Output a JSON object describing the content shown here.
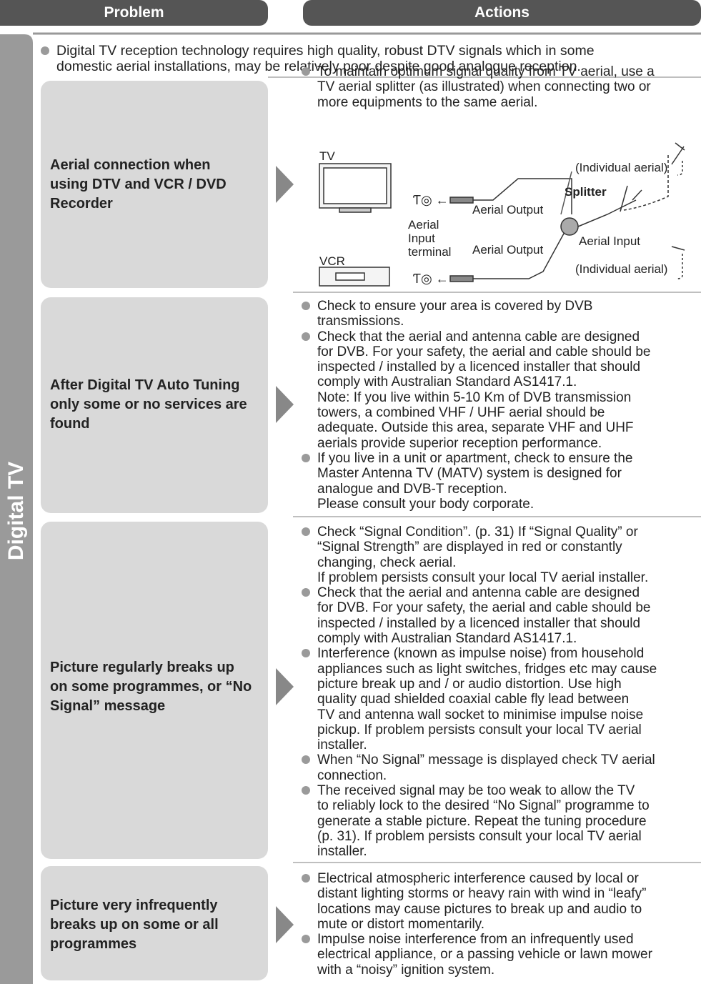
{
  "header": {
    "problem": "Problem",
    "actions": "Actions"
  },
  "section": "Digital TV",
  "intro": [
    "Digital TV reception technology requires high quality, robust DTV signals which in some",
    "domestic aerial installations, may be relatively poor despite good analogue reception."
  ],
  "rows": [
    {
      "problem": [
        "Aerial connection when",
        "using DTV and VCR / DVD",
        "Recorder"
      ],
      "actions": [
        [
          "To maintain optimum signal quality from TV aerial, use a",
          "TV aerial splitter (as illustrated) when connecting two or",
          "more equipments to the same aerial."
        ]
      ]
    },
    {
      "problem": [
        "After Digital TV Auto Tuning",
        "only some or no services are",
        "found"
      ],
      "actions": [
        [
          "Check to ensure your area is covered by DVB",
          "transmissions."
        ],
        [
          "Check that the aerial and antenna cable are designed",
          "for DVB. For your safety, the aerial and cable should be",
          "inspected / installed by a licenced installer that should",
          "comply with Australian Standard AS1417.1.",
          "Note: If you live within 5-10 Km of DVB transmission",
          "towers, a combined VHF / UHF aerial should be",
          "adequate. Outside this area, separate VHF and UHF",
          "aerials provide superior reception performance."
        ],
        [
          "If you live in a unit or apartment, check to ensure the",
          "Master Antenna TV (MATV) system is designed for",
          "analogue and DVB-T reception.",
          "Please consult your body corporate."
        ]
      ]
    },
    {
      "problem": [
        "Picture regularly breaks up",
        "on some programmes, or “No",
        "Signal” message"
      ],
      "actions": [
        [
          "Check “Signal Condition”. (p. 31) If “Signal Quality” or",
          "“Signal Strength” are displayed in red or constantly",
          "changing, check aerial.",
          "If problem persists consult your local TV aerial installer."
        ],
        [
          "Check that the aerial and antenna cable are designed",
          "for DVB. For your safety, the aerial and cable should be",
          "inspected / installed by a licenced installer that should",
          "comply with Australian Standard AS1417.1."
        ],
        [
          "Interference (known as impulse noise) from household",
          "appliances such as light switches, fridges etc may cause",
          "picture break up and / or audio distortion. Use high",
          "quality quad shielded coaxial cable fly lead between",
          "TV and antenna wall socket to minimise impulse noise",
          "pickup. If problem persists consult your local TV aerial",
          "installer."
        ],
        [
          "When “No Signal” message is displayed check TV aerial",
          "connection."
        ],
        [
          "The received signal may be too weak to allow the TV",
          "to reliably lock to the desired “No Signal” programme to",
          "generate a stable picture. Repeat the tuning procedure",
          "(p. 31). If problem persists consult your local TV aerial",
          "installer."
        ]
      ]
    },
    {
      "problem": [
        "Picture very infrequently",
        "breaks up on some or all",
        "programmes"
      ],
      "actions": [
        [
          "Electrical atmospheric interference caused by local or",
          "distant lighting storms or heavy rain with wind in “leafy”",
          "locations may cause pictures to break up and audio to",
          "mute or distort momentarily."
        ],
        [
          "Impulse noise interference from an infrequently used",
          "electrical appliance, or a passing vehicle or lawn mower",
          "with a “noisy” ignition system."
        ]
      ]
    }
  ],
  "diagram": {
    "tv": "TV",
    "vcr": "VCR",
    "individual_aerial_top": "(Individual aerial)",
    "individual_aerial_bottom": "(Individual aerial)",
    "splitter": "Splitter",
    "aerial_output_top": "Aerial Output",
    "aerial_output_bottom": "Aerial Output",
    "aerial_input": "Aerial Input",
    "aerial_input_terminal": [
      "Aerial",
      "Input",
      "terminal"
    ]
  }
}
